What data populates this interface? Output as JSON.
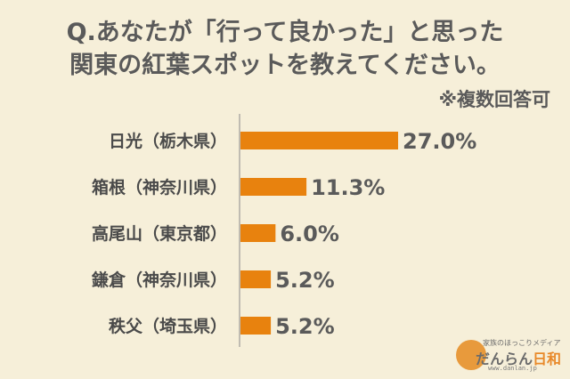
{
  "title_line1": "Q.あなたが「行って良かった」と思った",
  "title_line2": "関東の紅葉スポットを教えてください。",
  "note": "※複数回答可",
  "chart_data": {
    "type": "bar",
    "orientation": "horizontal",
    "categories": [
      "日光（栃木県）",
      "箱根（神奈川県）",
      "高尾山（東京都）",
      "鎌倉（神奈川県）",
      "秩父（埼玉県）"
    ],
    "values": [
      27.0,
      11.3,
      6.0,
      5.2,
      5.2
    ],
    "value_labels": [
      "27.0%",
      "11.3%",
      "6.0%",
      "5.2%",
      "5.2%"
    ],
    "unit": "%",
    "bar_color": "#e8820e",
    "axis_color": "#8a8a8a",
    "grid": false,
    "legend": "none"
  },
  "logo": {
    "tagline": "家族のほっこりメディア",
    "name_main": "だんらん",
    "name_accent": "日和",
    "url": "www.danlan.jp",
    "circle_color": "#e89a3c"
  }
}
